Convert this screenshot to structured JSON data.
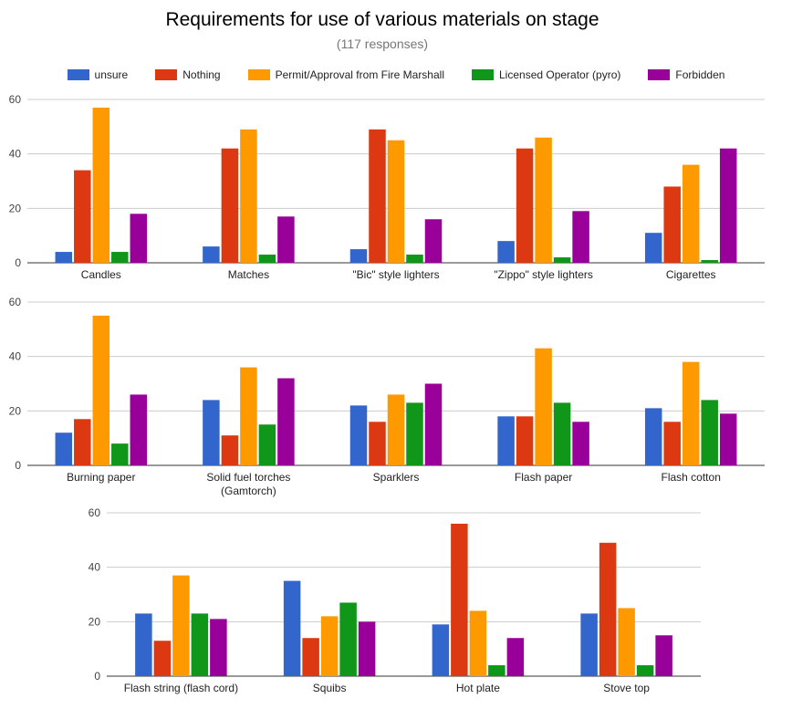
{
  "title": "Requirements for use of various materials on stage",
  "subtitle": "(117 responses)",
  "legend": [
    {
      "label": "unsure",
      "color": "#3366cc"
    },
    {
      "label": "Nothing",
      "color": "#dc3912"
    },
    {
      "label": "Permit/Approval from Fire Marshall",
      "color": "#ff9900"
    },
    {
      "label": "Licensed Operator (pyro)",
      "color": "#109618"
    },
    {
      "label": "Forbidden",
      "color": "#990099"
    }
  ],
  "chart_data": [
    {
      "type": "bar",
      "ylim": [
        0,
        60
      ],
      "yticks": [
        0,
        20,
        40,
        60
      ],
      "grid": true,
      "legend_position": "top",
      "categories": [
        "Candles",
        "Matches",
        "\"Bic\" style lighters",
        "\"Zippo\" style lighters",
        "Cigarettes"
      ],
      "series": [
        {
          "name": "unsure",
          "values": [
            4,
            6,
            5,
            8,
            11
          ]
        },
        {
          "name": "Nothing",
          "values": [
            34,
            42,
            49,
            42,
            28
          ]
        },
        {
          "name": "Permit/Approval from Fire Marshall",
          "values": [
            57,
            49,
            45,
            46,
            36
          ]
        },
        {
          "name": "Licensed Operator (pyro)",
          "values": [
            4,
            3,
            3,
            2,
            1
          ]
        },
        {
          "name": "Forbidden",
          "values": [
            18,
            17,
            16,
            19,
            42
          ]
        }
      ]
    },
    {
      "type": "bar",
      "ylim": [
        0,
        60
      ],
      "yticks": [
        0,
        20,
        40,
        60
      ],
      "grid": true,
      "categories": [
        "Burning paper",
        "Solid fuel torches (Gamtorch)",
        "Sparklers",
        "Flash paper",
        "Flash cotton"
      ],
      "series": [
        {
          "name": "unsure",
          "values": [
            12,
            24,
            22,
            18,
            21
          ]
        },
        {
          "name": "Nothing",
          "values": [
            17,
            11,
            16,
            18,
            16
          ]
        },
        {
          "name": "Permit/Approval from Fire Marshall",
          "values": [
            55,
            36,
            26,
            43,
            38
          ]
        },
        {
          "name": "Licensed Operator (pyro)",
          "values": [
            8,
            15,
            23,
            23,
            24
          ]
        },
        {
          "name": "Forbidden",
          "values": [
            26,
            32,
            30,
            16,
            19
          ]
        }
      ]
    },
    {
      "type": "bar",
      "ylim": [
        0,
        60
      ],
      "yticks": [
        0,
        20,
        40,
        60
      ],
      "grid": true,
      "categories": [
        "Flash string (flash cord)",
        "Squibs",
        "Hot plate",
        "Stove top"
      ],
      "series": [
        {
          "name": "unsure",
          "values": [
            23,
            35,
            19,
            23
          ]
        },
        {
          "name": "Nothing",
          "values": [
            13,
            14,
            56,
            49
          ]
        },
        {
          "name": "Permit/Approval from Fire Marshall",
          "values": [
            37,
            22,
            24,
            25
          ]
        },
        {
          "name": "Licensed Operator (pyro)",
          "values": [
            23,
            27,
            4,
            4
          ]
        },
        {
          "name": "Forbidden",
          "values": [
            21,
            20,
            14,
            15
          ]
        }
      ]
    }
  ]
}
